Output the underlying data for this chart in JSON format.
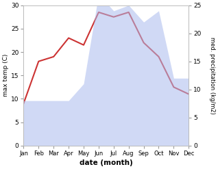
{
  "months": [
    "Jan",
    "Feb",
    "Mar",
    "Apr",
    "May",
    "Jun",
    "Jul",
    "Aug",
    "Sep",
    "Oct",
    "Nov",
    "Dec"
  ],
  "temp": [
    9,
    18,
    19,
    23,
    21.5,
    28.5,
    27.5,
    28.5,
    22,
    19,
    12.5,
    11
  ],
  "precip": [
    8,
    8,
    8,
    8,
    11,
    27,
    24,
    25,
    22,
    24,
    12,
    12
  ],
  "temp_color": "#cc3333",
  "precip_color": "#aabbee",
  "temp_ylim": [
    0,
    30
  ],
  "precip_ylim": [
    0,
    25
  ],
  "ylabel_left": "max temp (C)",
  "ylabel_right": "med. precipitation (kg/m2)",
  "xlabel": "date (month)",
  "bg_color": "#ffffff",
  "fill_alpha": 0.55,
  "line_width": 1.5
}
